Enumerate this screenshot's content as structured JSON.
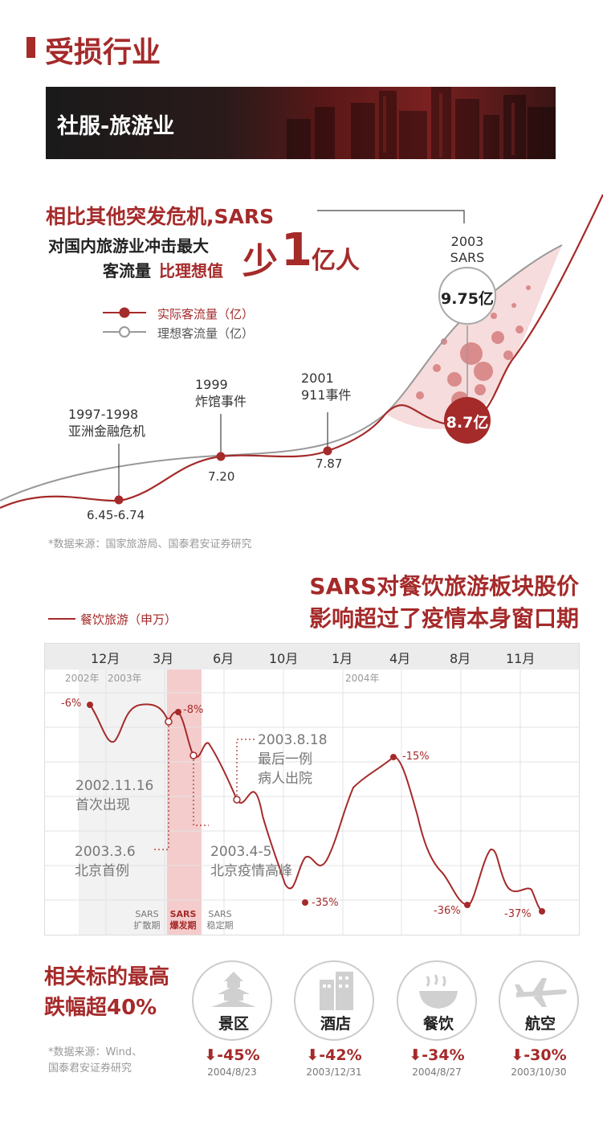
{
  "header": {
    "title": "受损行业"
  },
  "banner": {
    "label": "社服-旅游业"
  },
  "section1": {
    "line1": "相比其他突发危机,SARS",
    "line2": "对国内旅游业冲击最大",
    "line3_prefix": "客流量",
    "line3_red": "比理想值",
    "line3_big_a": "少",
    "line3_big_b": "1",
    "line3_big_c": "亿人",
    "legend_actual": "实际客流量（亿）",
    "legend_ideal": "理想客流量（亿）",
    "source": "*数据来源：国家旅游局、国泰君安证券研究"
  },
  "chart_data": [
    {
      "type": "line",
      "title": "",
      "series": [
        {
          "name": "实际客流量（亿）",
          "color": "#a52a2a"
        },
        {
          "name": "理想客流量（亿）",
          "color": "#999999"
        }
      ],
      "annotations": [
        {
          "year_label": "1997-1998",
          "event": "亚洲金融危机",
          "value": "6.45-6.74"
        },
        {
          "year_label": "1999",
          "event": "炸馆事件",
          "value": "7.20"
        },
        {
          "year_label": "2001",
          "event": "911事件",
          "value": "7.87"
        },
        {
          "year_label": "2003",
          "event": "SARS",
          "value": "8.7亿",
          "ideal_value": "9.75亿"
        }
      ]
    },
    {
      "type": "line",
      "title": "SARS对餐饮旅游板块股价影响超过了疫情本身窗口期",
      "series": [
        {
          "name": "餐饮旅游（申万）",
          "color": "#a52a2a"
        }
      ],
      "x_ticks": [
        "12月",
        "3月",
        "6月",
        "10月",
        "1月",
        "4月",
        "8月",
        "11月"
      ],
      "year_labels": [
        "2002年",
        "2003年",
        "2004年"
      ],
      "point_labels": [
        "-6%",
        "-8%",
        "-35%",
        "-15%",
        "-36%",
        "-37%"
      ],
      "events": [
        {
          "date": "2002.11.16",
          "text": "首次出现"
        },
        {
          "date": "2003.3.6",
          "text": "北京首例"
        },
        {
          "date": "2003.4-5",
          "text": "北京疫情高峰"
        },
        {
          "date": "2003.8.18",
          "text1": "最后一例",
          "text2": "病人出院"
        }
      ],
      "phases": [
        {
          "l1": "SARS",
          "l2": "扩散期"
        },
        {
          "l1": "SARS",
          "l2": "爆发期"
        },
        {
          "l1": "SARS",
          "l2": "稳定期"
        }
      ]
    }
  ],
  "bottom": {
    "title1": "相关标的最高",
    "title2": "跌幅超40%",
    "source1": "*数据来源：Wind、",
    "source2": "国泰君安证券研究",
    "items": [
      {
        "label": "景区",
        "pct": "-45%",
        "date": "2004/8/23",
        "icon": "pagoda-icon"
      },
      {
        "label": "酒店",
        "pct": "-42%",
        "date": "2003/12/31",
        "icon": "hotel-icon"
      },
      {
        "label": "餐饮",
        "pct": "-34%",
        "date": "2004/8/27",
        "icon": "bowl-icon"
      },
      {
        "label": "航空",
        "pct": "-30%",
        "date": "2003/10/30",
        "icon": "airplane-icon"
      }
    ]
  }
}
